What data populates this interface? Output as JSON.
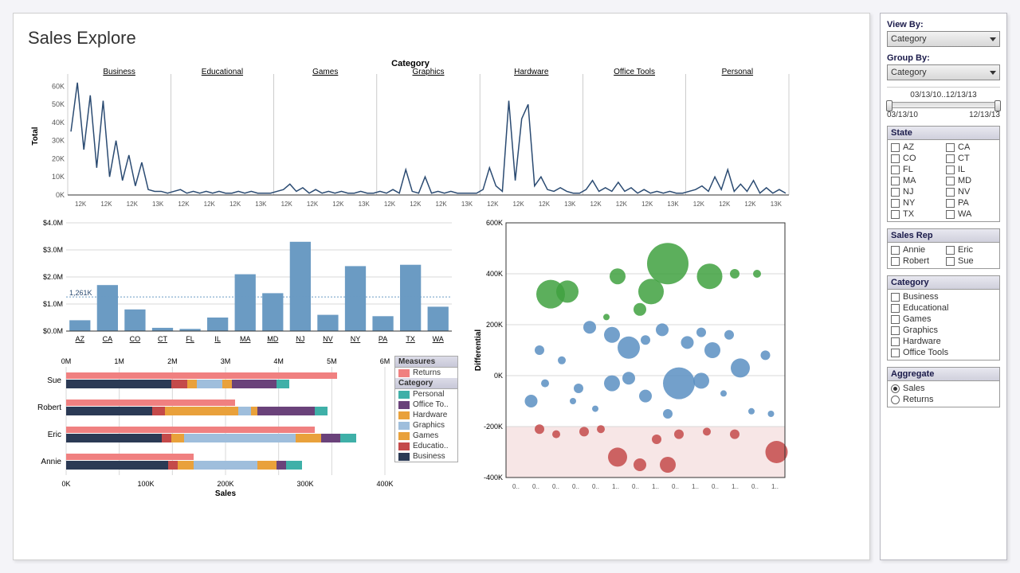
{
  "title": "Sales Explore",
  "colors": {
    "line": "#2b4b72",
    "bar": "#6b9bc3",
    "grid": "#d8d8d8",
    "bubble_pos_big": "#3fa13f",
    "bubble_mid": "#5b8fc2",
    "bubble_neg": "#c44a4a",
    "neg_band": "#f7e6e6",
    "ref_line": "#c06060"
  },
  "line_chart": {
    "axis_title": "Category",
    "y_label": "Total",
    "categories": [
      "Business",
      "Educational",
      "Games",
      "Graphics",
      "Hardware",
      "Office Tools",
      "Personal"
    ],
    "x_ticks_per_cat": [
      "12K",
      "12K",
      "12K",
      "13K"
    ],
    "y_ticks": [
      "0K",
      "10K",
      "20K",
      "30K",
      "40K",
      "50K",
      "60K"
    ],
    "y_max": 65,
    "series": [
      [
        35,
        62,
        25,
        55,
        15,
        52,
        10,
        30,
        8,
        22,
        5,
        18,
        3,
        2,
        2,
        1
      ],
      [
        2,
        3,
        1,
        2,
        1,
        2,
        1,
        2,
        1,
        1,
        2,
        1,
        2,
        1,
        1,
        1
      ],
      [
        2,
        3,
        6,
        2,
        4,
        1,
        3,
        1,
        2,
        1,
        2,
        1,
        1,
        2,
        1,
        1
      ],
      [
        2,
        1,
        3,
        1,
        14,
        2,
        1,
        10,
        1,
        2,
        1,
        2,
        1,
        1,
        1,
        1
      ],
      [
        3,
        15,
        5,
        2,
        52,
        8,
        42,
        50,
        5,
        10,
        3,
        2,
        4,
        2,
        1,
        1
      ],
      [
        3,
        8,
        2,
        4,
        2,
        7,
        2,
        4,
        1,
        3,
        1,
        2,
        1,
        2,
        1,
        1
      ],
      [
        2,
        3,
        5,
        2,
        10,
        3,
        14,
        2,
        6,
        2,
        8,
        1,
        4,
        1,
        3,
        1
      ]
    ]
  },
  "bar_chart": {
    "y_ticks": [
      "$0.0M",
      "$1.0M",
      "$2.0M",
      "$3.0M",
      "$4.0M"
    ],
    "y_max": 4.0,
    "annotation": "1,261K",
    "bars": [
      {
        "label": "AZ",
        "v": 0.4
      },
      {
        "label": "CA",
        "v": 1.7
      },
      {
        "label": "CO",
        "v": 0.8
      },
      {
        "label": "CT",
        "v": 0.12
      },
      {
        "label": "FL",
        "v": 0.08
      },
      {
        "label": "IL",
        "v": 0.5
      },
      {
        "label": "MA",
        "v": 2.1
      },
      {
        "label": "MD",
        "v": 1.4
      },
      {
        "label": "NJ",
        "v": 3.3
      },
      {
        "label": "NV",
        "v": 0.6
      },
      {
        "label": "NY",
        "v": 2.4
      },
      {
        "label": "PA",
        "v": 0.55
      },
      {
        "label": "TX",
        "v": 2.45
      },
      {
        "label": "WA",
        "v": 0.9
      }
    ]
  },
  "stacked_chart": {
    "top_ticks": [
      "0M",
      "1M",
      "2M",
      "3M",
      "4M",
      "5M",
      "6M"
    ],
    "bottom_ticks": [
      "0K",
      "100K",
      "200K",
      "300K",
      "400K"
    ],
    "x_label": "Sales",
    "reps": [
      "Sue",
      "Robert",
      "Eric",
      "Annie"
    ],
    "returns_pct": [
      0.85,
      0.53,
      0.78,
      0.4
    ],
    "segments": {
      "Sue": [
        0.33,
        0.05,
        0.03,
        0.08,
        0.03,
        0.14,
        0.04
      ],
      "Robert": [
        0.27,
        0.04,
        0.23,
        0.04,
        0.02,
        0.18,
        0.04
      ],
      "Eric": [
        0.3,
        0.03,
        0.04,
        0.35,
        0.08,
        0.06,
        0.05
      ],
      "Annie": [
        0.32,
        0.03,
        0.05,
        0.2,
        0.06,
        0.03,
        0.05
      ]
    },
    "seg_colors": [
      "#2b3a55",
      "#c44a4a",
      "#e9a13b",
      "#9fbedc",
      "#e9a13b",
      "#6a427a",
      "#3fb0a8"
    ],
    "legend_measures": {
      "header": "Measures",
      "items": [
        {
          "c": "#f08080",
          "l": "Returns"
        }
      ]
    },
    "legend_category": {
      "header": "Category",
      "items": [
        {
          "c": "#3fb0a8",
          "l": "Personal"
        },
        {
          "c": "#6a427a",
          "l": "Office To.."
        },
        {
          "c": "#e9a13b",
          "l": "Hardware"
        },
        {
          "c": "#9fbedc",
          "l": "Graphics"
        },
        {
          "c": "#e9a13b",
          "l": "Games"
        },
        {
          "c": "#c44a4a",
          "l": "Educatio.."
        },
        {
          "c": "#2b3a55",
          "l": "Business"
        }
      ]
    }
  },
  "bubble_chart": {
    "y_label": "Differential",
    "y_ticks": [
      "-400K",
      "-200K",
      "0K",
      "200K",
      "400K",
      "600K"
    ],
    "y_min": -400,
    "y_max": 600,
    "x_ticks": [
      "0..",
      "0..",
      "0..",
      "0..",
      "0..",
      "1..",
      "0..",
      "1..",
      "0..",
      "1..",
      "0..",
      "1..",
      "0..",
      "1.."
    ],
    "points": [
      {
        "x": 0.16,
        "y": 320,
        "r": 18,
        "c": "g"
      },
      {
        "x": 0.22,
        "y": 330,
        "r": 14,
        "c": "g"
      },
      {
        "x": 0.4,
        "y": 390,
        "r": 10,
        "c": "g"
      },
      {
        "x": 0.48,
        "y": 260,
        "r": 8,
        "c": "g"
      },
      {
        "x": 0.52,
        "y": 330,
        "r": 16,
        "c": "g"
      },
      {
        "x": 0.58,
        "y": 440,
        "r": 26,
        "c": "g"
      },
      {
        "x": 0.73,
        "y": 390,
        "r": 16,
        "c": "g"
      },
      {
        "x": 0.82,
        "y": 400,
        "r": 6,
        "c": "g"
      },
      {
        "x": 0.9,
        "y": 400,
        "r": 5,
        "c": "g"
      },
      {
        "x": 0.36,
        "y": 230,
        "r": 4,
        "c": "g"
      },
      {
        "x": 0.12,
        "y": 100,
        "r": 6,
        "c": "b"
      },
      {
        "x": 0.09,
        "y": -100,
        "r": 8,
        "c": "b"
      },
      {
        "x": 0.14,
        "y": -30,
        "r": 5,
        "c": "b"
      },
      {
        "x": 0.2,
        "y": 60,
        "r": 5,
        "c": "b"
      },
      {
        "x": 0.24,
        "y": -100,
        "r": 4,
        "c": "b"
      },
      {
        "x": 0.26,
        "y": -50,
        "r": 6,
        "c": "b"
      },
      {
        "x": 0.3,
        "y": 190,
        "r": 8,
        "c": "b"
      },
      {
        "x": 0.32,
        "y": -130,
        "r": 4,
        "c": "b"
      },
      {
        "x": 0.38,
        "y": 160,
        "r": 10,
        "c": "b"
      },
      {
        "x": 0.38,
        "y": -30,
        "r": 10,
        "c": "b"
      },
      {
        "x": 0.44,
        "y": 110,
        "r": 14,
        "c": "b"
      },
      {
        "x": 0.44,
        "y": -10,
        "r": 8,
        "c": "b"
      },
      {
        "x": 0.5,
        "y": 140,
        "r": 6,
        "c": "b"
      },
      {
        "x": 0.5,
        "y": -80,
        "r": 8,
        "c": "b"
      },
      {
        "x": 0.56,
        "y": 180,
        "r": 8,
        "c": "b"
      },
      {
        "x": 0.58,
        "y": -150,
        "r": 6,
        "c": "b"
      },
      {
        "x": 0.62,
        "y": -30,
        "r": 20,
        "c": "b"
      },
      {
        "x": 0.65,
        "y": 130,
        "r": 8,
        "c": "b"
      },
      {
        "x": 0.7,
        "y": 170,
        "r": 6,
        "c": "b"
      },
      {
        "x": 0.7,
        "y": -20,
        "r": 10,
        "c": "b"
      },
      {
        "x": 0.74,
        "y": 100,
        "r": 10,
        "c": "b"
      },
      {
        "x": 0.78,
        "y": -70,
        "r": 4,
        "c": "b"
      },
      {
        "x": 0.8,
        "y": 160,
        "r": 6,
        "c": "b"
      },
      {
        "x": 0.84,
        "y": 30,
        "r": 12,
        "c": "b"
      },
      {
        "x": 0.88,
        "y": -140,
        "r": 4,
        "c": "b"
      },
      {
        "x": 0.93,
        "y": 80,
        "r": 6,
        "c": "b"
      },
      {
        "x": 0.95,
        "y": -150,
        "r": 4,
        "c": "b"
      },
      {
        "x": 0.12,
        "y": -210,
        "r": 6,
        "c": "r"
      },
      {
        "x": 0.18,
        "y": -230,
        "r": 5,
        "c": "r"
      },
      {
        "x": 0.28,
        "y": -220,
        "r": 6,
        "c": "r"
      },
      {
        "x": 0.34,
        "y": -210,
        "r": 5,
        "c": "r"
      },
      {
        "x": 0.4,
        "y": -320,
        "r": 12,
        "c": "r"
      },
      {
        "x": 0.48,
        "y": -350,
        "r": 8,
        "c": "r"
      },
      {
        "x": 0.54,
        "y": -250,
        "r": 6,
        "c": "r"
      },
      {
        "x": 0.58,
        "y": -350,
        "r": 10,
        "c": "r"
      },
      {
        "x": 0.62,
        "y": -230,
        "r": 6,
        "c": "r"
      },
      {
        "x": 0.72,
        "y": -220,
        "r": 5,
        "c": "r"
      },
      {
        "x": 0.82,
        "y": -230,
        "r": 6,
        "c": "r"
      },
      {
        "x": 0.97,
        "y": -300,
        "r": 14,
        "c": "r"
      }
    ]
  },
  "sidebar": {
    "view_by_label": "View By:",
    "view_by_value": "Category",
    "group_by_label": "Group By:",
    "group_by_value": "Category",
    "date_range": "03/13/10..12/13/13",
    "date_start": "03/13/10",
    "date_end": "12/13/13",
    "state_header": "State",
    "states": [
      "AZ",
      "CA",
      "CO",
      "CT",
      "FL",
      "IL",
      "MA",
      "MD",
      "NJ",
      "NV",
      "NY",
      "PA",
      "TX",
      "WA"
    ],
    "rep_header": "Sales Rep",
    "reps": [
      "Annie",
      "Eric",
      "Robert",
      "Sue"
    ],
    "cat_header": "Category",
    "cats": [
      "Business",
      "Educational",
      "Games",
      "Graphics",
      "Hardware",
      "Office Tools"
    ],
    "agg_header": "Aggregate",
    "agg_options": [
      "Sales",
      "Returns"
    ],
    "agg_selected": "Sales"
  }
}
